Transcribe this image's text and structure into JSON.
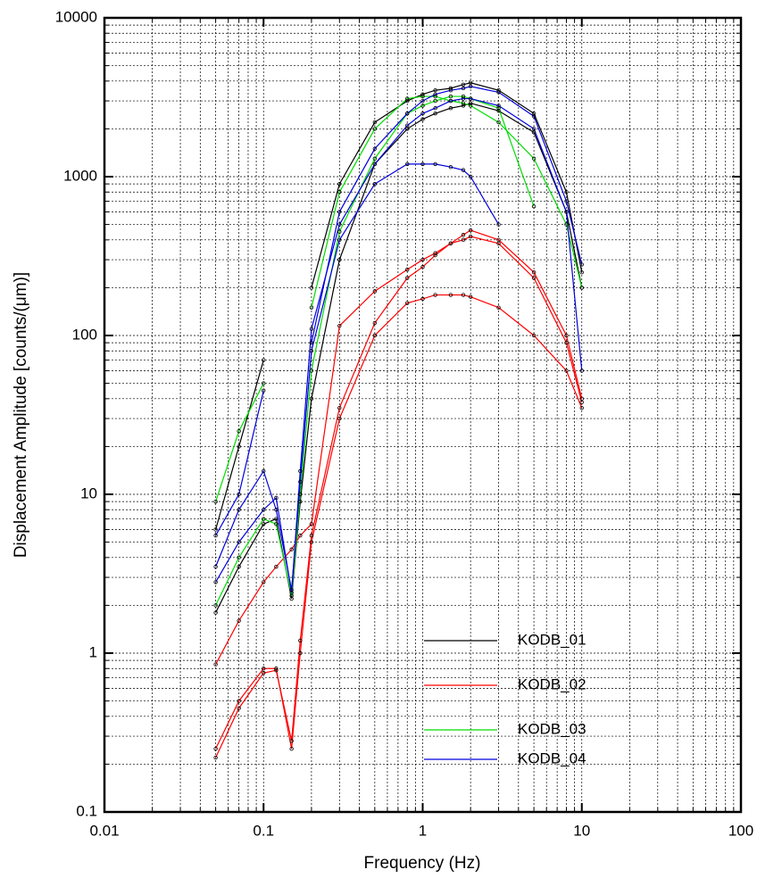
{
  "chart_data": {
    "type": "line",
    "x_label": "Frequency (Hz)",
    "y_label": "Displacement Amplitude [counts/(μm)]",
    "x": [
      0.05,
      0.07,
      0.1,
      0.12,
      0.15,
      0.17,
      0.2,
      0.3,
      0.5,
      0.8,
      1,
      1.2,
      1.5,
      1.8,
      2,
      3,
      5,
      8,
      10
    ],
    "xlim": [
      0.01,
      100
    ],
    "xticks": [
      0.01,
      0.1,
      1,
      10,
      100
    ],
    "ylim": [
      0.1,
      10000
    ],
    "yticks": [
      0.1,
      1,
      10,
      100,
      1000,
      10000
    ],
    "log_x": true,
    "log_y": true,
    "grid": true,
    "legend": "lower center",
    "series": [
      {
        "name": "KODB_01",
        "color": "#000000",
        "values": [
          [
            6,
            20,
            70,
            null,
            null,
            null,
            200,
            900,
            2200,
            3000,
            3300,
            3500,
            3600,
            3800,
            3900,
            3500,
            2500,
            800,
            250
          ],
          [
            1.8,
            3.5,
            6.5,
            7,
            2.2,
            9,
            40,
            300,
            1200,
            2000,
            2300,
            2500,
            2700,
            2800,
            2900,
            2600,
            1900,
            600,
            200
          ]
        ]
      },
      {
        "name": "KODB_02",
        "color": "#ff0000",
        "values": [
          [
            0.25,
            0.5,
            0.8,
            0.8,
            0.25,
            1.0,
            5,
            30,
            100,
            160,
            170,
            180,
            180,
            180,
            175,
            150,
            100,
            60,
            35
          ],
          [
            0.22,
            0.45,
            0.75,
            0.78,
            0.28,
            1.2,
            5.5,
            35,
            120,
            230,
            270,
            320,
            380,
            400,
            420,
            380,
            230,
            90,
            38
          ],
          [
            0.85,
            1.6,
            2.8,
            3.5,
            4.5,
            5.5,
            6.5,
            115,
            190,
            260,
            300,
            330,
            380,
            430,
            460,
            400,
            250,
            100,
            40
          ]
        ]
      },
      {
        "name": "KODB_03",
        "color": "#00dd00",
        "values": [
          [
            9,
            25,
            50,
            null,
            null,
            null,
            150,
            800,
            2000,
            3100,
            3200,
            3200,
            3000,
            2900,
            2800,
            2200,
            1300,
            500,
            200
          ],
          [
            2,
            4,
            7,
            6.5,
            2.3,
            10,
            60,
            450,
            1300,
            2500,
            2800,
            3000,
            3200,
            3200,
            3100,
            2700,
            650,
            null,
            null
          ]
        ]
      },
      {
        "name": "KODB_04",
        "color": "#0000dd",
        "values": [
          [
            3.5,
            8,
            14,
            8,
            2.5,
            12,
            80,
            400,
            900,
            1200,
            1200,
            1200,
            1150,
            1100,
            1000,
            500,
            null,
            null,
            null
          ],
          [
            5.5,
            10,
            45,
            null,
            null,
            null,
            90,
            600,
            1500,
            2500,
            3000,
            3300,
            3500,
            3600,
            3700,
            3400,
            2400,
            700,
            280
          ],
          [
            2.8,
            5,
            8,
            9.5,
            2.4,
            14,
            110,
            500,
            1200,
            2100,
            2500,
            2700,
            3000,
            3100,
            3100,
            2800,
            2000,
            600,
            60
          ]
        ]
      }
    ]
  }
}
